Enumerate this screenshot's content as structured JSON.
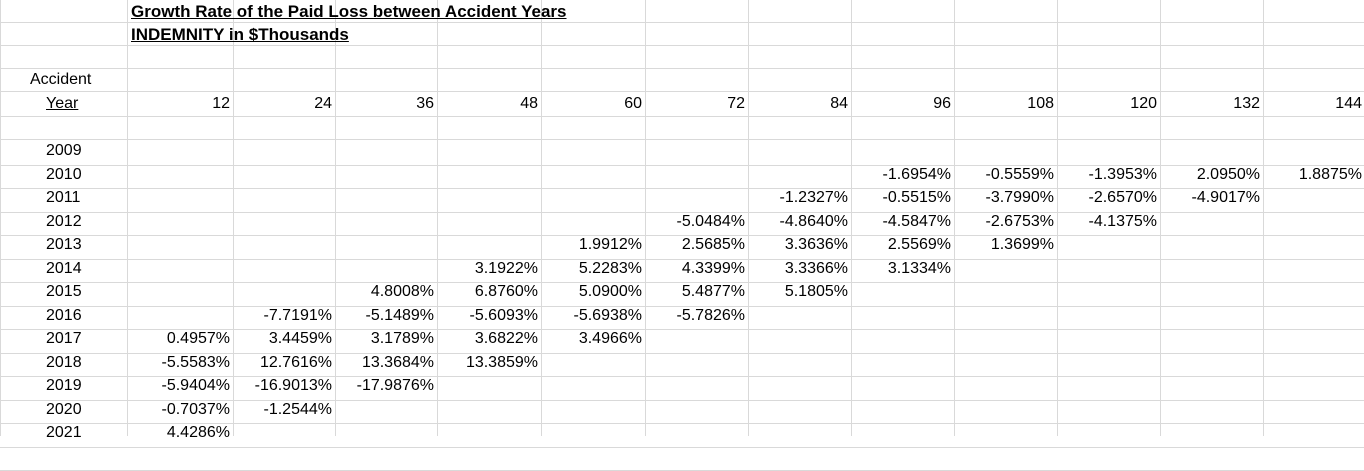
{
  "title_line1": "Growth Rate of the Paid Loss between Accident Years",
  "title_line2": "INDEMNITY in $Thousands",
  "header": {
    "accident": "Accident",
    "year": "Year"
  },
  "dev_ages": [
    "12",
    "24",
    "36",
    "48",
    "60",
    "72",
    "84",
    "96",
    "108",
    "120",
    "132",
    "144"
  ],
  "years": [
    "2009",
    "2010",
    "2011",
    "2012",
    "2013",
    "2014",
    "2015",
    "2016",
    "2017",
    "2018",
    "2019",
    "2020",
    "2021"
  ],
  "rows": [
    [
      "",
      "",
      "",
      "",
      "",
      "",
      "",
      "",
      "",
      "",
      "",
      ""
    ],
    [
      "",
      "",
      "",
      "",
      "",
      "",
      "",
      "-1.6954%",
      "-0.5559%",
      "-1.3953%",
      "2.0950%",
      "1.8875%"
    ],
    [
      "",
      "",
      "",
      "",
      "",
      "",
      "-1.2327%",
      "-0.5515%",
      "-3.7990%",
      "-2.6570%",
      "-4.9017%",
      ""
    ],
    [
      "",
      "",
      "",
      "",
      "",
      "-5.0484%",
      "-4.8640%",
      "-4.5847%",
      "-2.6753%",
      "-4.1375%",
      "",
      ""
    ],
    [
      "",
      "",
      "",
      "",
      "1.9912%",
      "2.5685%",
      "3.3636%",
      "2.5569%",
      "1.3699%",
      "",
      "",
      ""
    ],
    [
      "",
      "",
      "",
      "3.1922%",
      "5.2283%",
      "4.3399%",
      "3.3366%",
      "3.1334%",
      "",
      "",
      "",
      ""
    ],
    [
      "",
      "",
      "4.8008%",
      "6.8760%",
      "5.0900%",
      "5.4877%",
      "5.1805%",
      "",
      "",
      "",
      "",
      ""
    ],
    [
      "",
      "-7.7191%",
      "-5.1489%",
      "-5.6093%",
      "-5.6938%",
      "-5.7826%",
      "",
      "",
      "",
      "",
      "",
      ""
    ],
    [
      "0.4957%",
      "3.4459%",
      "3.1789%",
      "3.6822%",
      "3.4966%",
      "",
      "",
      "",
      "",
      "",
      "",
      ""
    ],
    [
      "-5.5583%",
      "12.7616%",
      "13.3684%",
      "13.3859%",
      "",
      "",
      "",
      "",
      "",
      "",
      "",
      ""
    ],
    [
      "-5.9404%",
      "-16.9013%",
      "-17.9876%",
      "",
      "",
      "",
      "",
      "",
      "",
      "",
      "",
      ""
    ],
    [
      "-0.7037%",
      "-1.2544%",
      "",
      "",
      "",
      "",
      "",
      "",
      "",
      "",
      "",
      ""
    ],
    [
      "4.4286%",
      "",
      "",
      "",
      "",
      "",
      "",
      "",
      "",
      "",
      "",
      ""
    ]
  ]
}
